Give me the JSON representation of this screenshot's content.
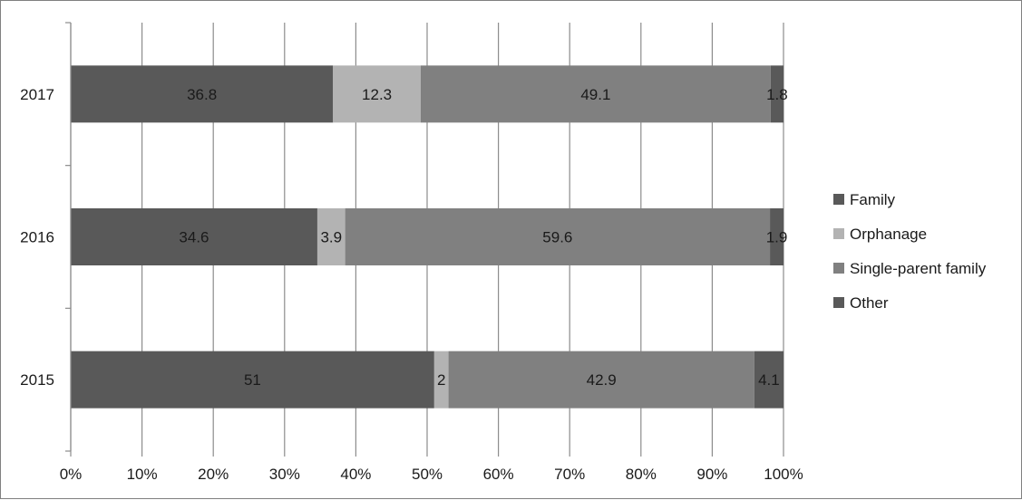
{
  "chart_data": {
    "type": "bar",
    "orientation": "horizontal",
    "stacked": "percent",
    "title": "",
    "xlabel": "",
    "ylabel": "",
    "categories": [
      "2017",
      "2016",
      "2015"
    ],
    "series": [
      {
        "name": "Family",
        "values": [
          36.8,
          34.6,
          51
        ],
        "color": "#595959"
      },
      {
        "name": "Orphanage",
        "values": [
          12.3,
          3.9,
          2
        ],
        "color": "#b3b3b3"
      },
      {
        "name": "Single-parent family",
        "values": [
          49.1,
          59.6,
          42.9
        ],
        "color": "#808080"
      },
      {
        "name": "Other",
        "values": [
          1.8,
          1.9,
          4.1
        ],
        "color": "#595959"
      }
    ],
    "data_labels": [
      [
        "36.8",
        "12.3",
        "49.1",
        "1.8"
      ],
      [
        "34.6",
        "3.9",
        "59.6",
        "1.9"
      ],
      [
        "51",
        "2",
        "42.9",
        "4.1"
      ]
    ],
    "xlim": [
      0,
      100
    ],
    "xticks": [
      "0%",
      "10%",
      "20%",
      "30%",
      "40%",
      "50%",
      "60%",
      "70%",
      "80%",
      "90%",
      "100%"
    ],
    "grid": true,
    "legend_position": "right"
  }
}
